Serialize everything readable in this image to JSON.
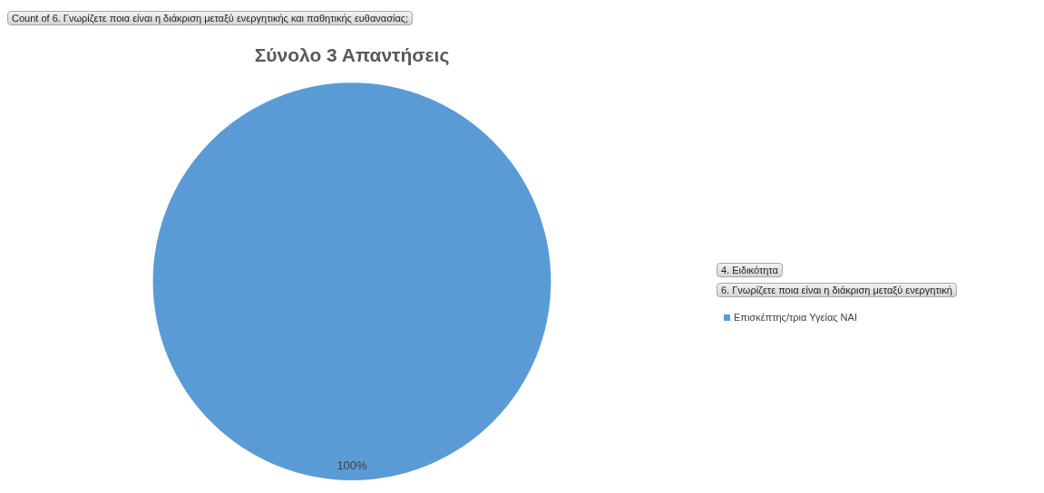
{
  "chart_data": {
    "type": "pie",
    "title": "Σύνολο 3 Απαντήσεις",
    "categories": [
      "Επισκέπτης/τρια Υγείας ΝΑΙ"
    ],
    "values": [
      100
    ],
    "colors": [
      "#5b9bd5"
    ],
    "value_labels": [
      "100%"
    ],
    "legend": "right",
    "annotations": [
      "Count of 6. Γνωρίζετε ποια είναι η διάκριση μεταξύ ενεργητικής και παθητικής ευθανασίας;",
      "4. Ειδικότητα",
      "6. Γνωρίζετε ποια είναι η διάκριση μεταξύ ενεργητική"
    ]
  }
}
